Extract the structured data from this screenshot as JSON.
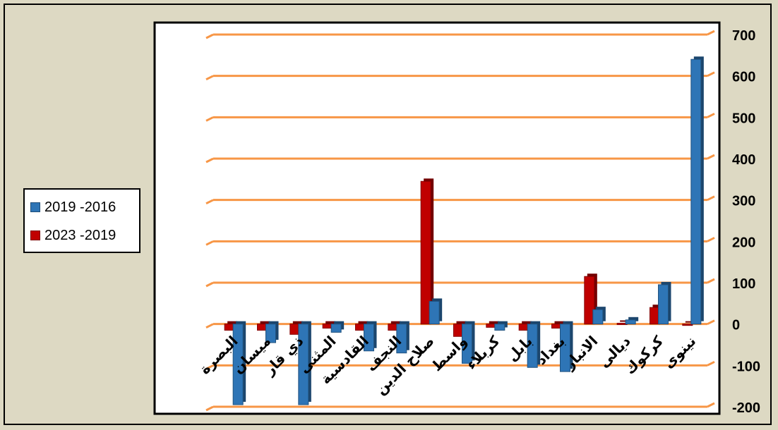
{
  "chart_data": {
    "type": "bar",
    "title": "",
    "xlabel": "",
    "ylabel": "",
    "ylim": [
      -200,
      700
    ],
    "yticks": [
      -200,
      -100,
      0,
      100,
      200,
      300,
      400,
      500,
      600,
      700
    ],
    "grid": true,
    "legend_position": "left",
    "categories": [
      "البصرة",
      "ميسان",
      "ذي قار",
      "المثنى",
      "القادسية",
      "النجف",
      "صلاح الدين",
      "واسط",
      "كربلاء",
      "بابل",
      "بغداد",
      "الانبار",
      "ديالى",
      "كركوك",
      "نينوى"
    ],
    "series": [
      {
        "name": "2019 -2016",
        "color": "#2e75b6",
        "values": [
          -195,
          -45,
          -195,
          -20,
          -65,
          -70,
          55,
          -95,
          -15,
          -105,
          -115,
          35,
          10,
          95,
          640
        ]
      },
      {
        "name": "2023 -2019",
        "color": "#c00000",
        "values": [
          -15,
          -15,
          -25,
          -10,
          -15,
          -15,
          345,
          -30,
          -8,
          -15,
          -10,
          115,
          2,
          40,
          0
        ]
      }
    ],
    "colors": {
      "grid": "#f79646",
      "plot_background": "#ffffff",
      "page_background": "#ddd9c3"
    }
  }
}
